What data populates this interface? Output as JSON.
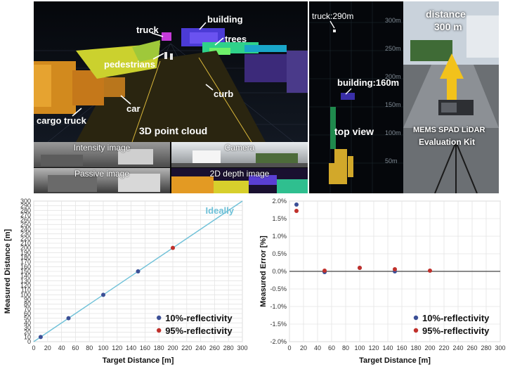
{
  "figure": {
    "point_cloud": {
      "title": "3D point cloud",
      "labels": {
        "truck": "truck",
        "building": "building",
        "trees": "trees",
        "pedestrians": "pedestrians",
        "curb": "curb",
        "cargo_truck": "cargo truck",
        "car": "car"
      }
    },
    "thumbnails": {
      "intensity": "Intensity image",
      "camera": "Camera",
      "passive": "Passive image",
      "depth": "2D depth image"
    },
    "top_view": {
      "title": "top view",
      "truck": "truck:290m",
      "building": "building:160m",
      "ticks": [
        "300m",
        "250m",
        "200m",
        "150m",
        "100m",
        "50m"
      ]
    },
    "camera_photo": {
      "distance_label": "distance",
      "distance_value": "300 m",
      "kit_line1": "MEMS SPAD LiDAR",
      "kit_line2": "Evaluation Kit"
    }
  },
  "chart_data": [
    {
      "type": "scatter",
      "xlabel": "Target Distance [m]",
      "ylabel": "Measured Distance [m]",
      "xlim": [
        0,
        300
      ],
      "ylim": [
        0,
        300
      ],
      "xticks": [
        0,
        20,
        40,
        60,
        80,
        100,
        120,
        140,
        160,
        180,
        200,
        220,
        240,
        260,
        280,
        300
      ],
      "yticks": [
        0,
        10,
        20,
        30,
        40,
        50,
        60,
        70,
        80,
        90,
        100,
        110,
        120,
        130,
        140,
        150,
        160,
        170,
        180,
        190,
        200,
        210,
        220,
        230,
        240,
        250,
        260,
        270,
        280,
        290,
        300
      ],
      "grid": true,
      "reference_line": {
        "label": "Ideally",
        "from": [
          0,
          0
        ],
        "to": [
          300,
          300
        ],
        "color": "#6fc1d8"
      },
      "series": [
        {
          "name": "10%-reflectivity",
          "color": "#3b4f96",
          "x": [
            10,
            50,
            100,
            150
          ],
          "y": [
            10,
            50,
            100,
            150
          ]
        },
        {
          "name": "95%-reflectivity",
          "color": "#c0302b",
          "x": [
            200
          ],
          "y": [
            200
          ]
        }
      ],
      "legend": "bottom-right"
    },
    {
      "type": "scatter",
      "xlabel": "Target Distance [m]",
      "ylabel": "Measured Error [%]",
      "xlim": [
        0,
        300
      ],
      "ylim": [
        -2.0,
        2.0
      ],
      "xticks": [
        0,
        20,
        40,
        60,
        80,
        100,
        120,
        140,
        160,
        180,
        200,
        220,
        240,
        260,
        280,
        300
      ],
      "yticks": [
        2.0,
        1.5,
        1.0,
        0.5,
        0.0,
        -0.5,
        -1.0,
        -1.5,
        -2.0
      ],
      "ytick_labels": [
        "2.0%",
        "1.5%",
        "1.0%",
        "0.5%",
        "0.0%",
        "-0.5%",
        "-1.0%",
        "-1.5%",
        "-2.0%"
      ],
      "grid": true,
      "series": [
        {
          "name": "10%-reflectivity",
          "color": "#3b4f96",
          "x": [
            10,
            50,
            100,
            150
          ],
          "y": [
            1.9,
            -0.02,
            0.1,
            0.0
          ]
        },
        {
          "name": "95%-reflectivity",
          "color": "#c0302b",
          "x": [
            10,
            50,
            100,
            150,
            200
          ],
          "y": [
            1.72,
            0.02,
            0.1,
            0.06,
            0.02
          ]
        }
      ],
      "legend": "bottom-right"
    }
  ]
}
